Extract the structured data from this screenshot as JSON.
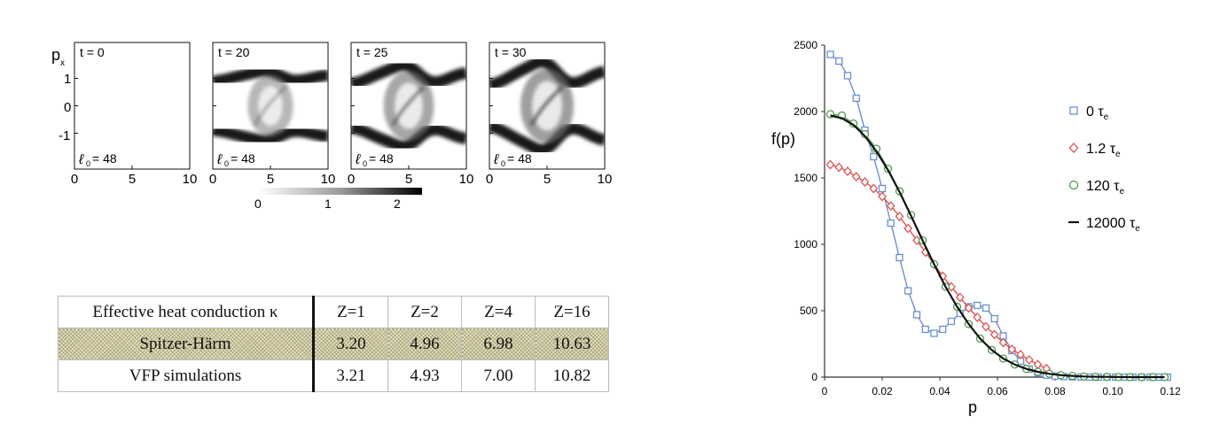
{
  "phase_space": {
    "y_axis_label": "p",
    "y_axis_sub": "x",
    "y_ticks": [
      "1",
      "0",
      "-1"
    ],
    "x_ticks": [
      "0",
      "5",
      "10"
    ],
    "panels": [
      {
        "time_label": "t = 0",
        "lambda_label": "= 48",
        "vortex": 0.0
      },
      {
        "time_label": "t = 20",
        "lambda_label": "= 48",
        "vortex": 0.45
      },
      {
        "time_label": "t = 25",
        "lambda_label": "= 48",
        "vortex": 0.8
      },
      {
        "time_label": "t = 30",
        "lambda_label": "= 48",
        "vortex": 1.0
      }
    ],
    "colorbar_ticks": [
      "0",
      "1",
      "2"
    ],
    "colorbar_range": [
      0,
      2.3
    ]
  },
  "table": {
    "header": [
      "Effective heat conduction κ",
      "Z=1",
      "Z=2",
      "Z=4",
      "Z=16"
    ],
    "rows": [
      {
        "label": "Spitzer-Härm",
        "values": [
          "3.20",
          "4.96",
          "6.98",
          "10.63"
        ]
      },
      {
        "label": "VFP simulations",
        "values": [
          "3.21",
          "4.93",
          "7.00",
          "10.82"
        ]
      }
    ]
  },
  "chart_data": {
    "type": "line",
    "xlabel": "p",
    "ylabel": "f(p)",
    "xlim": [
      0,
      0.12
    ],
    "ylim": [
      0,
      2500
    ],
    "x_ticks": [
      "0",
      "0.02",
      "0.04",
      "0.06",
      "0.08",
      "0.10",
      "0.12"
    ],
    "y_ticks": [
      "0",
      "500",
      "1000",
      "1500",
      "2000",
      "2500"
    ],
    "legend_position": "right",
    "series": [
      {
        "name": "0 τe",
        "label_main": "0 τ",
        "label_sub": "e",
        "color": "#6b8fd0",
        "marker": "square",
        "x": [
          0.002,
          0.005,
          0.008,
          0.011,
          0.014,
          0.017,
          0.02,
          0.023,
          0.026,
          0.029,
          0.032,
          0.035,
          0.038,
          0.041,
          0.044,
          0.047,
          0.05,
          0.053,
          0.056,
          0.059,
          0.062,
          0.065,
          0.068,
          0.071,
          0.074,
          0.077,
          0.08,
          0.083,
          0.086,
          0.089,
          0.092,
          0.095,
          0.098,
          0.101,
          0.104,
          0.107,
          0.11,
          0.113,
          0.116,
          0.119
        ],
        "y": [
          2430,
          2380,
          2270,
          2100,
          1860,
          1660,
          1420,
          1160,
          900,
          650,
          470,
          360,
          330,
          360,
          420,
          480,
          530,
          540,
          520,
          440,
          310,
          200,
          120,
          60,
          30,
          15,
          8,
          4,
          2,
          1,
          0,
          0,
          0,
          0,
          0,
          0,
          0,
          0,
          0,
          0
        ]
      },
      {
        "name": "1.2 τe",
        "label_main": "1.2 τ",
        "label_sub": "e",
        "color": "#d9534f",
        "marker": "diamond",
        "x": [
          0.002,
          0.005,
          0.008,
          0.011,
          0.014,
          0.017,
          0.02,
          0.023,
          0.026,
          0.029,
          0.032,
          0.035,
          0.038,
          0.041,
          0.044,
          0.047,
          0.05,
          0.053,
          0.056,
          0.059,
          0.062,
          0.065,
          0.068,
          0.071,
          0.074,
          0.077
        ],
        "y": [
          1600,
          1580,
          1550,
          1510,
          1470,
          1420,
          1360,
          1290,
          1210,
          1120,
          1030,
          940,
          850,
          760,
          680,
          600,
          520,
          450,
          380,
          320,
          260,
          210,
          170,
          130,
          95,
          65
        ]
      },
      {
        "name": "120 τe",
        "label_main": "120 τ",
        "label_sub": "e",
        "color": "#4e9a4e",
        "marker": "circle",
        "x": [
          0.002,
          0.006,
          0.01,
          0.014,
          0.018,
          0.022,
          0.026,
          0.03,
          0.034,
          0.038,
          0.042,
          0.046,
          0.05,
          0.054,
          0.058,
          0.062,
          0.066,
          0.07,
          0.074,
          0.078,
          0.082,
          0.086,
          0.09,
          0.094,
          0.098,
          0.102,
          0.106,
          0.11,
          0.114,
          0.118
        ],
        "y": [
          1980,
          1970,
          1910,
          1830,
          1720,
          1570,
          1400,
          1220,
          1030,
          850,
          680,
          530,
          400,
          290,
          205,
          140,
          95,
          62,
          40,
          25,
          15,
          9,
          5,
          3,
          2,
          1,
          0,
          0,
          0,
          0
        ]
      },
      {
        "name": "12000 τe",
        "label_main": "12000 τ",
        "label_sub": "e",
        "color": "#111111",
        "marker": "none",
        "x": [
          0.002,
          0.006,
          0.01,
          0.014,
          0.018,
          0.022,
          0.026,
          0.03,
          0.034,
          0.038,
          0.042,
          0.046,
          0.05,
          0.054,
          0.058,
          0.062,
          0.066,
          0.07,
          0.074,
          0.078,
          0.082,
          0.086,
          0.09,
          0.094,
          0.098,
          0.102,
          0.106,
          0.11,
          0.114,
          0.118
        ],
        "y": [
          1970,
          1950,
          1900,
          1815,
          1700,
          1560,
          1395,
          1215,
          1030,
          850,
          680,
          530,
          400,
          290,
          205,
          140,
          95,
          62,
          40,
          25,
          15,
          9,
          5,
          3,
          2,
          1,
          0,
          0,
          0,
          0
        ]
      }
    ]
  }
}
